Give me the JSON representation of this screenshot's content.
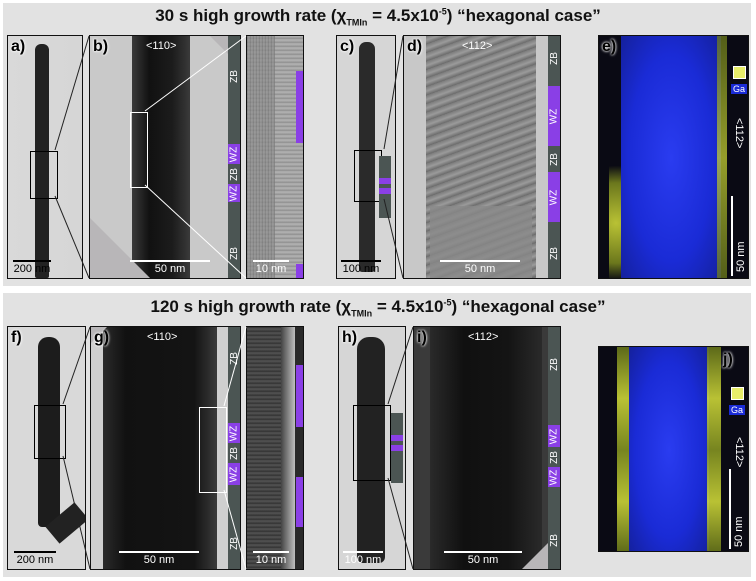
{
  "rows": [
    {
      "title_lead": "30 s high growth rate (χ",
      "title_sub": "TMIn",
      "title_mid": " = 4.5x10",
      "title_sup": "-5",
      "title_tail": ") “hexagonal case”",
      "panels": {
        "a": {
          "label": "a)",
          "scale": "200 nm"
        },
        "b": {
          "label": "b)",
          "dir": "<110>",
          "scale": "50 nm",
          "strip": [
            "ZB",
            "WZ",
            "ZB",
            "WZ",
            "ZB"
          ]
        },
        "b2": {
          "scale": "10 nm"
        },
        "c": {
          "label": "c)",
          "scale": "100 nm"
        },
        "d": {
          "label": "d)",
          "dir": "<112>",
          "scale": "50 nm",
          "strip": [
            "ZB",
            "WZ",
            "ZB",
            "WZ",
            "ZB"
          ]
        },
        "e": {
          "label": "e)",
          "legend_ga": "Ga",
          "dir": "<112>",
          "scale": "50 nm"
        }
      }
    },
    {
      "title_lead": "120 s high growth rate (χ",
      "title_sub": "TMIn",
      "title_mid": " = 4.5x10",
      "title_sup": "-5",
      "title_tail": ") “hexagonal case”",
      "panels": {
        "f": {
          "label": "f)",
          "scale": "200 nm"
        },
        "g": {
          "label": "g)",
          "dir": "<110>",
          "scale": "50 nm",
          "strip": [
            "ZB",
            "WZ",
            "ZB",
            "WZ",
            "ZB"
          ]
        },
        "g2": {
          "scale": "10 nm"
        },
        "h": {
          "label": "h)",
          "scale": "100 nm"
        },
        "i": {
          "label": "i)",
          "dir": "<112>",
          "scale": "50 nm",
          "strip": [
            "ZB",
            "WZ",
            "ZB",
            "WZ",
            "ZB"
          ]
        },
        "j": {
          "label": "j)",
          "legend_ga": "Ga",
          "dir": "<112>",
          "scale": "50 nm"
        }
      }
    }
  ],
  "colors": {
    "wz": "#8a3fe6",
    "zb": "#4b5553",
    "ga_map": "#1a2bd6",
    "in_map": "#d8e23a"
  }
}
